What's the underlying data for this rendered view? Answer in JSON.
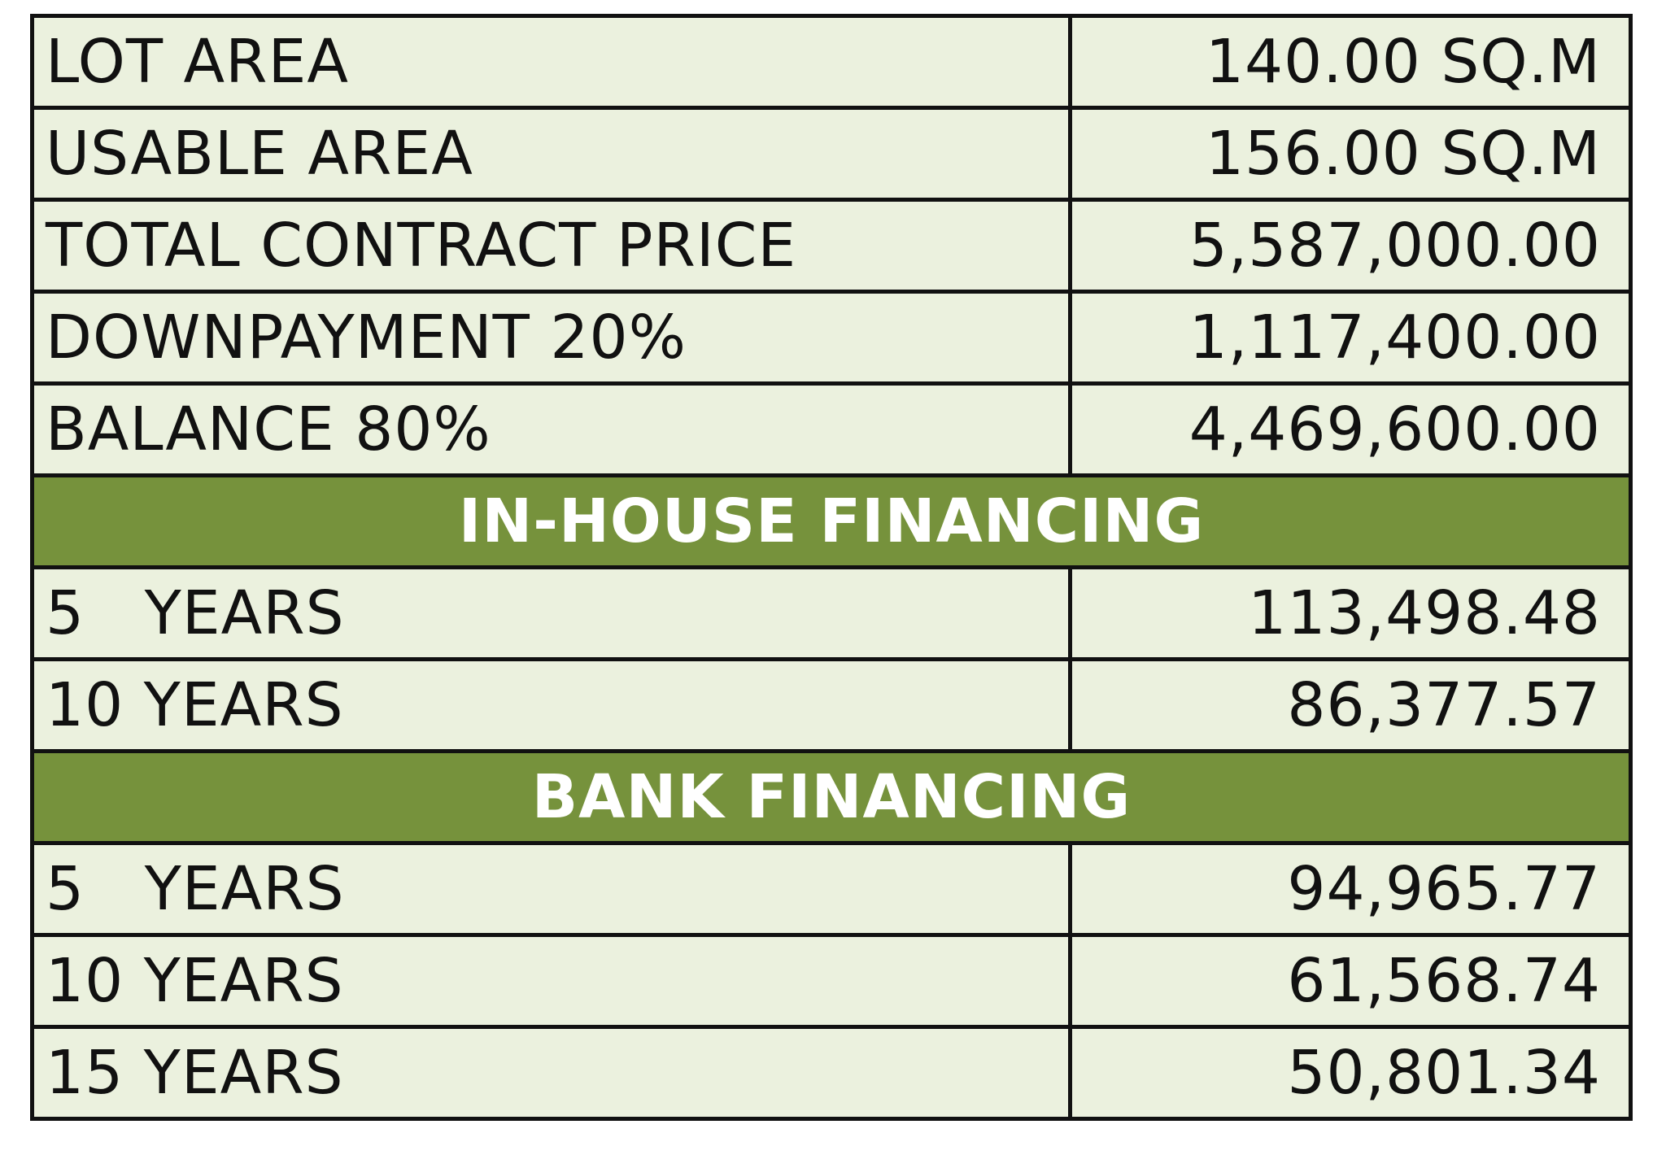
{
  "colors": {
    "cell_background": "#ebf1de",
    "section_background": "#76923c",
    "section_text": "#ffffff",
    "border": "#111111"
  },
  "summary_rows": [
    {
      "label": "LOT AREA",
      "value": "140.00 SQ.M"
    },
    {
      "label": "USABLE AREA",
      "value": "156.00 SQ.M"
    },
    {
      "label": "TOTAL CONTRACT PRICE",
      "value": "5,587,000.00"
    },
    {
      "label": "DOWNPAYMENT 20%",
      "value": "1,117,400.00"
    },
    {
      "label": "BALANCE 80%",
      "value": "4,469,600.00"
    }
  ],
  "in_house": {
    "title": "IN-HOUSE FINANCING",
    "rows": [
      {
        "label": "5   YEARS",
        "value": "113,498.48"
      },
      {
        "label": "10 YEARS",
        "value": "86,377.57"
      }
    ]
  },
  "bank": {
    "title": "BANK FINANCING",
    "rows": [
      {
        "label": "5   YEARS",
        "value": "94,965.77"
      },
      {
        "label": "10 YEARS",
        "value": "61,568.74"
      },
      {
        "label": "15 YEARS",
        "value": "50,801.34"
      }
    ]
  }
}
